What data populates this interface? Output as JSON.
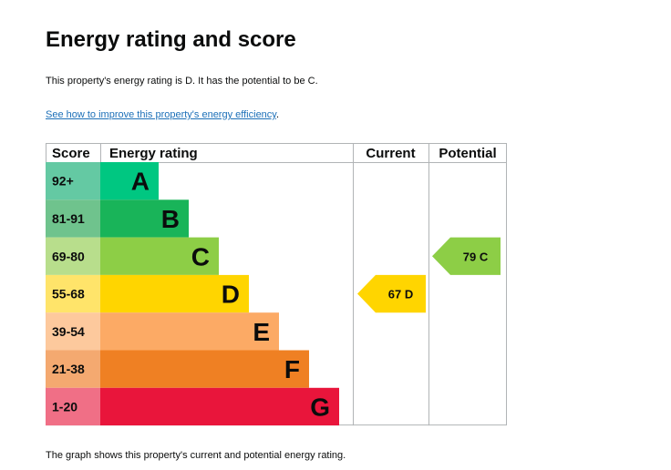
{
  "page": {
    "title": "Energy rating and score",
    "summary": "This property's energy rating is D. It has the potential to be C.",
    "improve_link_text": "See how to improve this property's energy efficiency",
    "improve_link_suffix": ".",
    "footer_note": "The graph shows this property's current and potential energy rating."
  },
  "chart_data": {
    "type": "bar",
    "headers": {
      "score": "Score",
      "rating": "Energy rating",
      "current": "Current",
      "potential": "Potential"
    },
    "bands": [
      {
        "score_range": "92+",
        "letter": "A",
        "min": 92,
        "max": 100,
        "color": "#00c781",
        "score_bg": "#64c9a3"
      },
      {
        "score_range": "81-91",
        "letter": "B",
        "min": 81,
        "max": 91,
        "color": "#19b459",
        "score_bg": "#6fc38d"
      },
      {
        "score_range": "69-80",
        "letter": "C",
        "min": 69,
        "max": 80,
        "color": "#8dce46",
        "score_bg": "#b8de8c"
      },
      {
        "score_range": "55-68",
        "letter": "D",
        "min": 55,
        "max": 68,
        "color": "#ffd500",
        "score_bg": "#ffe46a"
      },
      {
        "score_range": "39-54",
        "letter": "E",
        "min": 39,
        "max": 54,
        "color": "#fcaa65",
        "score_bg": "#fdc99d"
      },
      {
        "score_range": "21-38",
        "letter": "F",
        "min": 21,
        "max": 38,
        "color": "#ef8023",
        "score_bg": "#f4a970"
      },
      {
        "score_range": "1-20",
        "letter": "G",
        "min": 1,
        "max": 20,
        "color": "#e9153b",
        "score_bg": "#f06f86"
      }
    ],
    "current": {
      "score": 67,
      "band": "D",
      "label": "67  D",
      "color": "#ffd500"
    },
    "potential": {
      "score": 79,
      "band": "C",
      "label": "79  C",
      "color": "#8dce46"
    }
  }
}
